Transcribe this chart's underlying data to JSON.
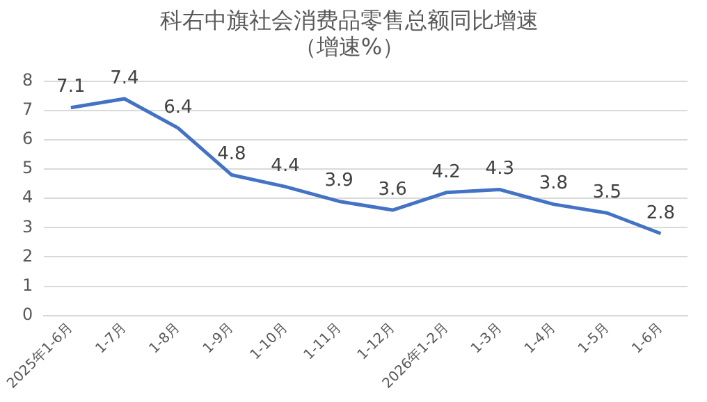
{
  "chart_data": {
    "type": "line",
    "title": "科右中旗社会消费品零售总额同比增速",
    "subtitle": "（增速%）",
    "categories": [
      "2025年1-6月",
      "1-7月",
      "1-8月",
      "1-9月",
      "1-10月",
      "1-11月",
      "1-12月",
      "2026年1-2月",
      "1-3月",
      "1-4月",
      "1-5月",
      "1-6月"
    ],
    "series": [
      {
        "color": "#4472c4",
        "values": [
          7.1,
          7.4,
          6.4,
          4.8,
          4.4,
          3.9,
          3.6,
          4.2,
          4.3,
          3.8,
          3.5,
          2.8
        ]
      }
    ],
    "ylim": [
      0,
      8
    ],
    "yticks": [
      0,
      1,
      2,
      3,
      4,
      5,
      6,
      7,
      8
    ],
    "grid": "y",
    "legend": false,
    "marker": "none",
    "line_style": "solid",
    "data_labels": true
  }
}
